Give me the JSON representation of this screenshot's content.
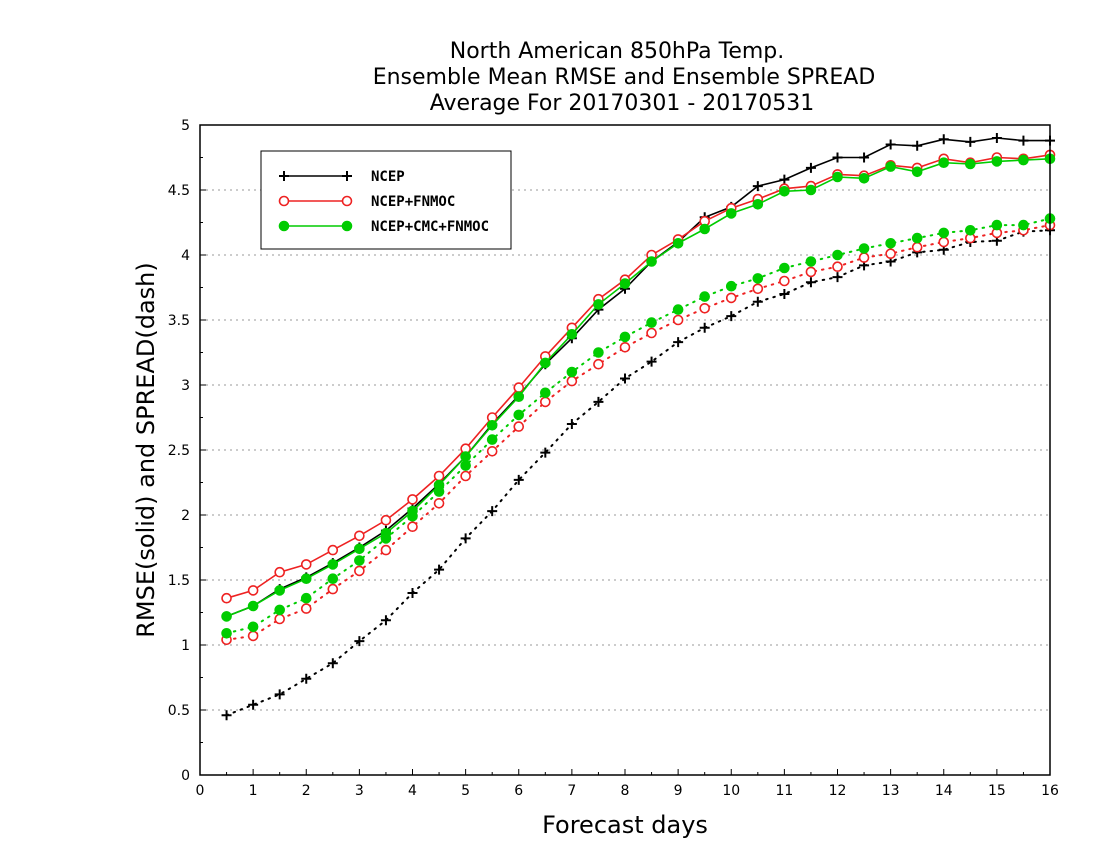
{
  "chart_data": {
    "type": "line",
    "title": [
      "North American 850hPa Temp.",
      "Ensemble Mean RMSE and Ensemble SPREAD",
      "Average For 20170301 - 20170531"
    ],
    "xlabel": "Forecast days",
    "ylabel": "RMSE(solid) and SPREAD(dash)",
    "xlim": [
      0,
      16
    ],
    "ylim": [
      0,
      5
    ],
    "xticks": [
      0,
      1,
      2,
      3,
      4,
      5,
      6,
      7,
      8,
      9,
      10,
      11,
      12,
      13,
      14,
      15,
      16
    ],
    "xtick_labels": [
      "0",
      "1",
      "2",
      "3",
      "4",
      "5",
      "6",
      "7",
      "8",
      "9",
      "10",
      "11",
      "12",
      "13",
      "14",
      "15",
      "16"
    ],
    "yticks": [
      0,
      0.5,
      1,
      1.5,
      2,
      2.5,
      3,
      3.5,
      4,
      4.5,
      5
    ],
    "ytick_labels": [
      "0",
      "0.5",
      "1",
      "1.5",
      "2",
      "2.5",
      "3",
      "3.5",
      "4",
      "4.5",
      "5"
    ],
    "grid": "horizontal dotted",
    "legend_position": "top-left",
    "x": [
      0.5,
      1,
      1.5,
      2,
      2.5,
      3,
      3.5,
      4,
      4.5,
      5,
      5.5,
      6,
      6.5,
      7,
      7.5,
      8,
      8.5,
      9,
      9.5,
      10,
      10.5,
      11,
      11.5,
      12,
      12.5,
      13,
      13.5,
      14,
      14.5,
      15,
      15.5,
      16
    ],
    "series": [
      {
        "name": "NCEP",
        "metric": "RMSE",
        "style": "solid",
        "marker": "plus",
        "color": "#000000",
        "values": [
          1.22,
          1.3,
          1.43,
          1.52,
          1.63,
          1.75,
          1.88,
          2.05,
          2.24,
          2.45,
          2.7,
          2.92,
          3.16,
          3.36,
          3.58,
          3.74,
          3.95,
          4.1,
          4.29,
          4.37,
          4.53,
          4.58,
          4.67,
          4.75,
          4.75,
          4.85,
          4.84,
          4.89,
          4.87,
          4.9,
          4.88,
          4.88
        ]
      },
      {
        "name": "NCEP+FNMOC",
        "metric": "RMSE",
        "style": "solid",
        "marker": "open-circle",
        "color": "#ee2222",
        "values": [
          1.36,
          1.42,
          1.56,
          1.62,
          1.73,
          1.84,
          1.96,
          2.12,
          2.3,
          2.51,
          2.75,
          2.98,
          3.22,
          3.44,
          3.66,
          3.81,
          4.0,
          4.12,
          4.26,
          4.36,
          4.43,
          4.51,
          4.53,
          4.62,
          4.61,
          4.69,
          4.67,
          4.74,
          4.71,
          4.75,
          4.74,
          4.77
        ]
      },
      {
        "name": "NCEP+CMC+FNMOC",
        "metric": "RMSE",
        "style": "solid",
        "marker": "filled-circle",
        "color": "#00cc00",
        "values": [
          1.22,
          1.3,
          1.42,
          1.51,
          1.62,
          1.74,
          1.86,
          2.03,
          2.23,
          2.45,
          2.69,
          2.91,
          3.17,
          3.39,
          3.62,
          3.78,
          3.95,
          4.09,
          4.2,
          4.32,
          4.39,
          4.49,
          4.5,
          4.6,
          4.59,
          4.68,
          4.64,
          4.71,
          4.7,
          4.72,
          4.73,
          4.74
        ]
      },
      {
        "name": "NCEP",
        "metric": "SPREAD",
        "style": "dotted",
        "marker": "plus",
        "color": "#000000",
        "values": [
          0.46,
          0.54,
          0.62,
          0.74,
          0.86,
          1.03,
          1.19,
          1.4,
          1.58,
          1.82,
          2.03,
          2.27,
          2.48,
          2.7,
          2.87,
          3.05,
          3.18,
          3.33,
          3.44,
          3.53,
          3.64,
          3.7,
          3.79,
          3.83,
          3.92,
          3.95,
          4.02,
          4.04,
          4.1,
          4.11,
          4.18,
          4.19
        ]
      },
      {
        "name": "NCEP+FNMOC",
        "metric": "SPREAD",
        "style": "dotted",
        "marker": "open-circle",
        "color": "#ee2222",
        "values": [
          1.04,
          1.07,
          1.2,
          1.28,
          1.43,
          1.57,
          1.73,
          1.91,
          2.09,
          2.3,
          2.49,
          2.68,
          2.87,
          3.03,
          3.16,
          3.29,
          3.4,
          3.5,
          3.59,
          3.67,
          3.74,
          3.8,
          3.87,
          3.91,
          3.98,
          4.01,
          4.06,
          4.1,
          4.13,
          4.17,
          4.19,
          4.23
        ]
      },
      {
        "name": "NCEP+CMC+FNMOC",
        "metric": "SPREAD",
        "style": "dotted",
        "marker": "filled-circle",
        "color": "#00cc00",
        "values": [
          1.09,
          1.14,
          1.27,
          1.36,
          1.51,
          1.65,
          1.82,
          1.99,
          2.18,
          2.38,
          2.58,
          2.77,
          2.94,
          3.1,
          3.25,
          3.37,
          3.48,
          3.58,
          3.68,
          3.76,
          3.82,
          3.9,
          3.95,
          4.0,
          4.05,
          4.09,
          4.13,
          4.17,
          4.19,
          4.23,
          4.23,
          4.28
        ]
      }
    ],
    "legend": [
      {
        "label": "NCEP",
        "marker": "plus",
        "color": "#000000"
      },
      {
        "label": "NCEP+FNMOC",
        "marker": "open-circle",
        "color": "#ee2222"
      },
      {
        "label": "NCEP+CMC+FNMOC",
        "marker": "filled-circle",
        "color": "#00cc00"
      }
    ]
  }
}
